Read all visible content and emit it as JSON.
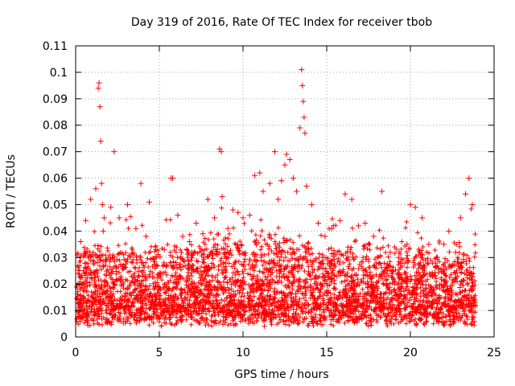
{
  "chart_data": {
    "type": "scatter",
    "title": "Day 319 of 2016, Rate Of TEC Index for receiver tbob",
    "xlabel": "GPS time / hours",
    "ylabel": "ROTI / TECUs",
    "xlim": [
      0,
      25
    ],
    "ylim": [
      0,
      0.11
    ],
    "x_ticks": [
      "0",
      "5",
      "10",
      "15",
      "20",
      "25"
    ],
    "y_ticks": [
      "0",
      "0.01",
      "0.02",
      "0.03",
      "0.04",
      "0.05",
      "0.06",
      "0.07",
      "0.08",
      "0.09",
      "0.1",
      "0.11"
    ],
    "grid": true,
    "legend": "none",
    "marker": "plus",
    "color": "#ff0000",
    "series": [
      {
        "x": [
          0.3,
          0.6,
          0.9,
          1.2,
          1.35,
          1.4,
          1.45,
          1.5,
          1.55,
          1.6,
          1.65,
          1.7,
          2.1,
          2.3,
          2.6,
          3.1,
          3.6,
          3.9,
          4.2,
          4.4,
          4.8,
          5.3,
          5.7,
          5.8,
          6.1,
          6.4,
          6.8,
          7.2,
          7.6,
          7.9,
          8.3,
          8.6,
          8.7,
          8.75,
          9.1,
          9.4,
          9.7,
          10.0,
          10.4,
          10.7,
          11.0,
          11.2,
          11.6,
          11.9,
          12.1,
          12.3,
          12.5,
          12.6,
          12.8,
          13.0,
          13.2,
          13.4,
          13.5,
          13.55,
          13.6,
          13.65,
          13.7,
          13.8,
          14.1,
          14.5,
          14.9,
          15.3,
          15.8,
          16.1,
          16.5,
          16.9,
          17.3,
          17.8,
          18.3,
          18.8,
          19.3,
          19.8,
          20.0,
          20.3,
          20.7,
          21.1,
          21.6,
          22.0,
          22.3,
          22.7,
          23.0,
          23.3,
          23.5,
          23.7
        ],
        "y": [
          0.036,
          0.044,
          0.052,
          0.056,
          0.094,
          0.096,
          0.087,
          0.074,
          0.058,
          0.05,
          0.04,
          0.045,
          0.049,
          0.07,
          0.045,
          0.05,
          0.041,
          0.058,
          0.038,
          0.051,
          0.033,
          0.033,
          0.06,
          0.06,
          0.046,
          0.038,
          0.036,
          0.043,
          0.039,
          0.052,
          0.045,
          0.071,
          0.07,
          0.053,
          0.041,
          0.048,
          0.047,
          0.045,
          0.046,
          0.061,
          0.062,
          0.055,
          0.058,
          0.07,
          0.052,
          0.059,
          0.065,
          0.069,
          0.067,
          0.06,
          0.055,
          0.079,
          0.101,
          0.095,
          0.089,
          0.083,
          0.077,
          0.057,
          0.05,
          0.043,
          0.038,
          0.041,
          0.044,
          0.054,
          0.052,
          0.042,
          0.043,
          0.038,
          0.055,
          0.032,
          0.03,
          0.035,
          0.05,
          0.049,
          0.045,
          0.035,
          0.03,
          0.035,
          0.04,
          0.032,
          0.045,
          0.054,
          0.06,
          0.05
        ]
      }
    ]
  }
}
